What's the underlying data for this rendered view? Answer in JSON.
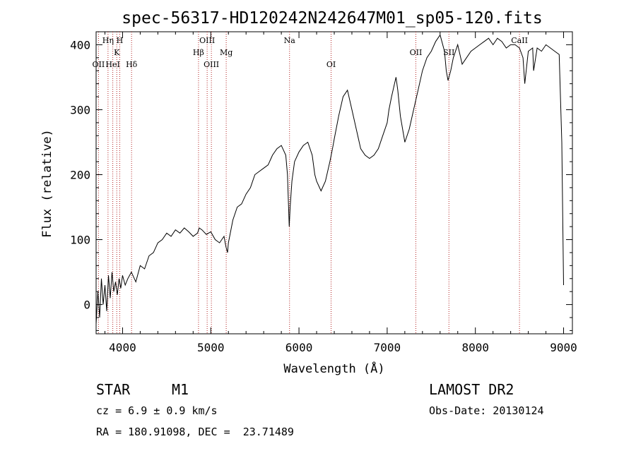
{
  "chart_data": {
    "type": "line",
    "title": "spec-56317-HD120242N242647M01_sp05-120.fits",
    "xlabel": "Wavelength (Å)",
    "ylabel": "Flux (relative)",
    "xlim": [
      3700,
      9100
    ],
    "ylim": [
      -45,
      420
    ],
    "xticks": [
      4000,
      5000,
      6000,
      7000,
      8000,
      9000
    ],
    "yticks": [
      0,
      100,
      200,
      300,
      400
    ],
    "grid": false,
    "series": [
      {
        "x": [
          3700,
          3720,
          3740,
          3760,
          3780,
          3800,
          3820,
          3840,
          3860,
          3880,
          3900,
          3920,
          3940,
          3960,
          3980,
          4000,
          4030,
          4060,
          4100,
          4150,
          4200,
          4250,
          4300,
          4350,
          4400,
          4450,
          4500,
          4550,
          4600,
          4650,
          4700,
          4750,
          4800,
          4850,
          4870,
          4900,
          4950,
          5000,
          5050,
          5100,
          5150,
          5170,
          5190,
          5200,
          5250,
          5300,
          5350,
          5400,
          5450,
          5500,
          5550,
          5600,
          5650,
          5700,
          5750,
          5800,
          5850,
          5870,
          5890,
          5900,
          5920,
          5950,
          6000,
          6050,
          6100,
          6150,
          6180,
          6200,
          6250,
          6300,
          6350,
          6380,
          6400,
          6450,
          6500,
          6550,
          6600,
          6650,
          6700,
          6750,
          6800,
          6850,
          6900,
          6950,
          7000,
          7020,
          7050,
          7100,
          7120,
          7150,
          7200,
          7250,
          7300,
          7350,
          7400,
          7450,
          7500,
          7550,
          7600,
          7650,
          7670,
          7690,
          7700,
          7720,
          7750,
          7800,
          7850,
          7900,
          7950,
          8000,
          8050,
          8100,
          8150,
          8200,
          8250,
          8300,
          8350,
          8400,
          8450,
          8500,
          8540,
          8560,
          8600,
          8650,
          8660,
          8700,
          8750,
          8800,
          8850,
          8900,
          8950,
          8980,
          9000
        ],
        "y": [
          -30,
          20,
          -20,
          40,
          0,
          30,
          -10,
          45,
          10,
          50,
          20,
          35,
          15,
          40,
          25,
          45,
          30,
          40,
          50,
          35,
          60,
          55,
          75,
          80,
          95,
          100,
          110,
          105,
          115,
          110,
          118,
          112,
          105,
          110,
          118,
          115,
          108,
          112,
          100,
          95,
          105,
          90,
          80,
          95,
          130,
          150,
          155,
          170,
          180,
          200,
          205,
          210,
          215,
          230,
          240,
          245,
          230,
          200,
          120,
          150,
          190,
          220,
          235,
          245,
          250,
          230,
          200,
          190,
          175,
          190,
          220,
          240,
          255,
          290,
          320,
          330,
          300,
          270,
          240,
          230,
          225,
          230,
          240,
          260,
          280,
          300,
          320,
          350,
          330,
          290,
          250,
          270,
          300,
          330,
          360,
          380,
          390,
          405,
          415,
          390,
          360,
          345,
          350,
          360,
          380,
          400,
          370,
          380,
          390,
          395,
          400,
          405,
          410,
          400,
          410,
          405,
          395,
          400,
          400,
          395,
          380,
          340,
          390,
          395,
          360,
          395,
          390,
          400,
          395,
          390,
          385,
          250,
          30
        ]
      }
    ],
    "spectral_lines": [
      {
        "label": "OII",
        "x": 3727,
        "row": 3
      },
      {
        "label": "Hη",
        "x": 3835,
        "row": 1
      },
      {
        "label": "HeI",
        "x": 3889,
        "row": 3
      },
      {
        "label": "K",
        "x": 3934,
        "row": 2
      },
      {
        "label": "H",
        "x": 3968,
        "row": 1
      },
      {
        "label": "Hδ",
        "x": 4102,
        "row": 3
      },
      {
        "label": "Hβ",
        "x": 4861,
        "row": 2
      },
      {
        "label": "OIII",
        "x": 4959,
        "row": 1
      },
      {
        "label": "OIII",
        "x": 5007,
        "row": 3
      },
      {
        "label": "Mg",
        "x": 5175,
        "row": 2
      },
      {
        "label": "Na",
        "x": 5893,
        "row": 1
      },
      {
        "label": "OI",
        "x": 6364,
        "row": 3
      },
      {
        "label": "OII",
        "x": 7325,
        "row": 2
      },
      {
        "label": "SII",
        "x": 7700,
        "row": 2
      },
      {
        "label": "CaII",
        "x": 8500,
        "row": 1
      }
    ]
  },
  "info": {
    "class": "STAR",
    "subclass": "M1",
    "survey": "LAMOST DR2",
    "cz": "cz = 6.9 ± 0.9 km/s",
    "obs_date": "Obs-Date: 20130124",
    "coords": "RA = 180.91098, DEC =  23.71489"
  },
  "colors": {
    "line": "#000000",
    "marker": "#b22222"
  }
}
